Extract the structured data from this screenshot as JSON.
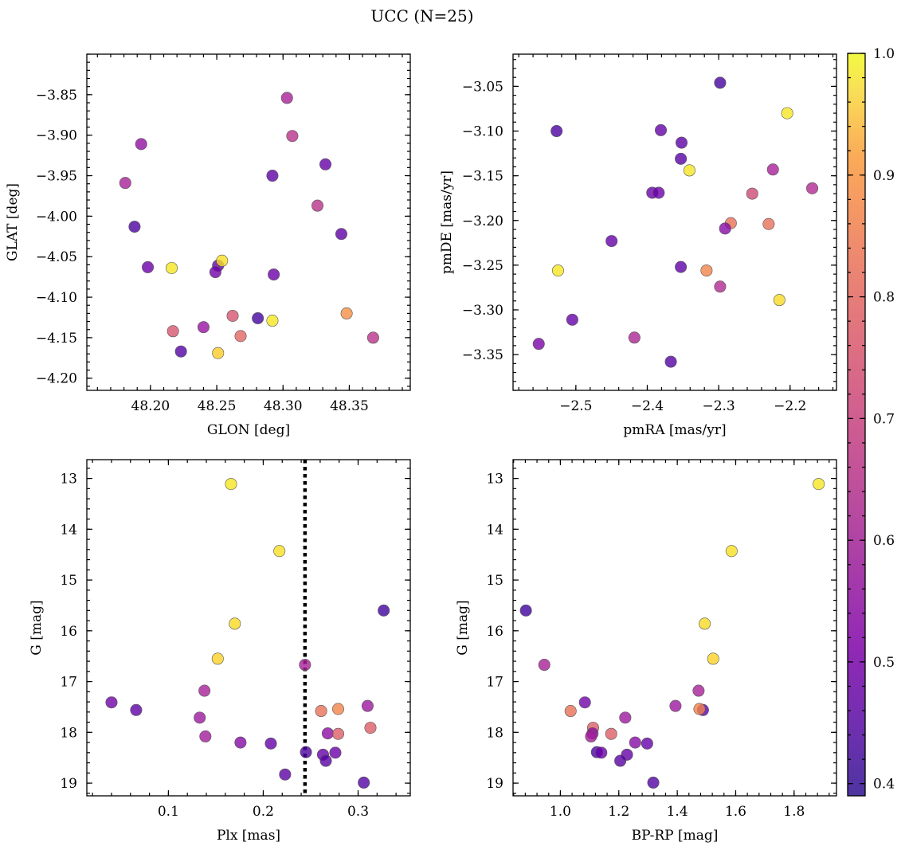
{
  "suptitle": "UCC (N=25)",
  "colorbar": {
    "range": [
      0.39,
      1.0
    ],
    "ticks": [
      0.4,
      0.5,
      0.6,
      0.7,
      0.8,
      0.9,
      1.0
    ],
    "tick_labels": [
      "0.4",
      "0.5",
      "0.6",
      "0.7",
      "0.8",
      "0.9",
      "1.0"
    ],
    "colormap": "plasma",
    "alpha": 0.8
  },
  "chart_data": [
    {
      "type": "scatter",
      "id": "glon-glat",
      "xlabel": "GLON [deg]",
      "ylabel": "GLAT [deg]",
      "xlim": [
        48.152,
        48.396
      ],
      "ylim": [
        -4.215,
        -3.8
      ],
      "invert_y": false,
      "xticks": [
        48.2,
        48.25,
        48.3,
        48.35
      ],
      "xtick_labels": [
        "48.20",
        "48.25",
        "48.30",
        "48.35"
      ],
      "xminor": 0.01,
      "yticks": [
        -4.2,
        -4.15,
        -4.1,
        -4.05,
        -4.0,
        -3.95,
        -3.9,
        -3.85
      ],
      "ytick_labels": [
        "−4.20",
        "−4.15",
        "−4.10",
        "−4.05",
        "−4.00",
        "−3.95",
        "−3.90",
        "−3.85"
      ],
      "yminor": 0.01,
      "points": [
        {
          "x": 48.303,
          "y": -3.854,
          "c": 0.58
        },
        {
          "x": 48.307,
          "y": -3.901,
          "c": 0.62
        },
        {
          "x": 48.193,
          "y": -3.911,
          "c": 0.54
        },
        {
          "x": 48.181,
          "y": -3.959,
          "c": 0.58
        },
        {
          "x": 48.292,
          "y": -3.95,
          "c": 0.45
        },
        {
          "x": 48.332,
          "y": -3.936,
          "c": 0.46
        },
        {
          "x": 48.326,
          "y": -3.987,
          "c": 0.62
        },
        {
          "x": 48.188,
          "y": -4.013,
          "c": 0.42
        },
        {
          "x": 48.344,
          "y": -4.022,
          "c": 0.45
        },
        {
          "x": 48.198,
          "y": -4.063,
          "c": 0.47
        },
        {
          "x": 48.216,
          "y": -4.064,
          "c": 0.97
        },
        {
          "x": 48.251,
          "y": -4.061,
          "c": 0.46
        },
        {
          "x": 48.254,
          "y": -4.055,
          "c": 0.96
        },
        {
          "x": 48.249,
          "y": -4.069,
          "c": 0.48
        },
        {
          "x": 48.293,
          "y": -4.072,
          "c": 0.47
        },
        {
          "x": 48.262,
          "y": -4.123,
          "c": 0.7
        },
        {
          "x": 48.281,
          "y": -4.126,
          "c": 0.41
        },
        {
          "x": 48.292,
          "y": -4.129,
          "c": 0.97
        },
        {
          "x": 48.348,
          "y": -4.12,
          "c": 0.82
        },
        {
          "x": 48.217,
          "y": -4.142,
          "c": 0.7
        },
        {
          "x": 48.24,
          "y": -4.137,
          "c": 0.55
        },
        {
          "x": 48.268,
          "y": -4.148,
          "c": 0.74
        },
        {
          "x": 48.368,
          "y": -4.15,
          "c": 0.62
        },
        {
          "x": 48.223,
          "y": -4.167,
          "c": 0.43
        },
        {
          "x": 48.251,
          "y": -4.169,
          "c": 0.93
        }
      ]
    },
    {
      "type": "scatter",
      "id": "pmra-pmde",
      "xlabel": "pmRA [mas/yr]",
      "ylabel": "pmDE [mas/yr]",
      "xlim": [
        -2.588,
        -2.135
      ],
      "ylim": [
        -3.39,
        -3.014
      ],
      "invert_y": false,
      "xticks": [
        -2.5,
        -2.4,
        -2.3,
        -2.2
      ],
      "xtick_labels": [
        "−2.5",
        "−2.4",
        "−2.3",
        "−2.2"
      ],
      "xminor": 0.02,
      "yticks": [
        -3.35,
        -3.3,
        -3.25,
        -3.2,
        -3.15,
        -3.1,
        -3.05
      ],
      "ytick_labels": [
        "−3.35",
        "−3.30",
        "−3.25",
        "−3.20",
        "−3.15",
        "−3.10",
        "−3.05"
      ],
      "yminor": 0.01,
      "points": [
        {
          "x": -2.298,
          "y": -3.046,
          "c": 0.41
        },
        {
          "x": -2.204,
          "y": -3.08,
          "c": 0.97
        },
        {
          "x": -2.527,
          "y": -3.1,
          "c": 0.42
        },
        {
          "x": -2.381,
          "y": -3.099,
          "c": 0.46
        },
        {
          "x": -2.352,
          "y": -3.113,
          "c": 0.45
        },
        {
          "x": -2.353,
          "y": -3.131,
          "c": 0.44
        },
        {
          "x": -2.341,
          "y": -3.144,
          "c": 0.97
        },
        {
          "x": -2.224,
          "y": -3.143,
          "c": 0.58
        },
        {
          "x": -2.169,
          "y": -3.164,
          "c": 0.6
        },
        {
          "x": -2.393,
          "y": -3.169,
          "c": 0.47
        },
        {
          "x": -2.384,
          "y": -3.169,
          "c": 0.47
        },
        {
          "x": -2.253,
          "y": -3.17,
          "c": 0.67
        },
        {
          "x": -2.283,
          "y": -3.203,
          "c": 0.76
        },
        {
          "x": -2.23,
          "y": -3.204,
          "c": 0.76
        },
        {
          "x": -2.291,
          "y": -3.209,
          "c": 0.52
        },
        {
          "x": -2.45,
          "y": -3.223,
          "c": 0.46
        },
        {
          "x": -2.353,
          "y": -3.252,
          "c": 0.45
        },
        {
          "x": -2.525,
          "y": -3.256,
          "c": 0.97
        },
        {
          "x": -2.317,
          "y": -3.256,
          "c": 0.8
        },
        {
          "x": -2.298,
          "y": -3.274,
          "c": 0.6
        },
        {
          "x": -2.215,
          "y": -3.289,
          "c": 0.95
        },
        {
          "x": -2.505,
          "y": -3.311,
          "c": 0.46
        },
        {
          "x": -2.418,
          "y": -3.331,
          "c": 0.59
        },
        {
          "x": -2.552,
          "y": -3.338,
          "c": 0.5
        },
        {
          "x": -2.367,
          "y": -3.358,
          "c": 0.43
        }
      ]
    },
    {
      "type": "scatter",
      "id": "plx-g",
      "xlabel": "Plx [mas]",
      "ylabel": "G [mag]",
      "xlim": [
        0.014,
        0.355
      ],
      "ylim": [
        12.63,
        19.25
      ],
      "invert_y": true,
      "xticks": [
        0.1,
        0.2,
        0.3
      ],
      "xtick_labels": [
        "0.1",
        "0.2",
        "0.3"
      ],
      "xminor": 0.02,
      "yticks": [
        13,
        14,
        15,
        16,
        17,
        18,
        19
      ],
      "ytick_labels": [
        "13",
        "14",
        "15",
        "16",
        "17",
        "18",
        "19"
      ],
      "yminor": 0.2,
      "vline": {
        "x": 0.244,
        "style": "dotted"
      },
      "points": [
        {
          "x": 0.166,
          "y": 13.11,
          "c": 0.97
        },
        {
          "x": 0.217,
          "y": 14.43,
          "c": 0.96
        },
        {
          "x": 0.327,
          "y": 15.6,
          "c": 0.4
        },
        {
          "x": 0.17,
          "y": 15.86,
          "c": 0.95
        },
        {
          "x": 0.152,
          "y": 16.55,
          "c": 0.94
        },
        {
          "x": 0.244,
          "y": 16.67,
          "c": 0.58
        },
        {
          "x": 0.138,
          "y": 17.18,
          "c": 0.58
        },
        {
          "x": 0.04,
          "y": 17.41,
          "c": 0.48
        },
        {
          "x": 0.066,
          "y": 17.56,
          "c": 0.45
        },
        {
          "x": 0.31,
          "y": 17.48,
          "c": 0.56
        },
        {
          "x": 0.261,
          "y": 17.58,
          "c": 0.76
        },
        {
          "x": 0.279,
          "y": 17.54,
          "c": 0.8
        },
        {
          "x": 0.133,
          "y": 17.71,
          "c": 0.56
        },
        {
          "x": 0.313,
          "y": 17.91,
          "c": 0.72
        },
        {
          "x": 0.268,
          "y": 18.02,
          "c": 0.53
        },
        {
          "x": 0.279,
          "y": 18.03,
          "c": 0.72
        },
        {
          "x": 0.139,
          "y": 18.08,
          "c": 0.57
        },
        {
          "x": 0.176,
          "y": 18.2,
          "c": 0.52
        },
        {
          "x": 0.208,
          "y": 18.22,
          "c": 0.46
        },
        {
          "x": 0.245,
          "y": 18.39,
          "c": 0.42
        },
        {
          "x": 0.276,
          "y": 18.4,
          "c": 0.47
        },
        {
          "x": 0.263,
          "y": 18.44,
          "c": 0.46
        },
        {
          "x": 0.266,
          "y": 18.56,
          "c": 0.44
        },
        {
          "x": 0.223,
          "y": 18.83,
          "c": 0.45
        },
        {
          "x": 0.306,
          "y": 18.99,
          "c": 0.43
        }
      ]
    },
    {
      "type": "scatter",
      "id": "bprp-g",
      "xlabel": "BP-RP [mag]",
      "ylabel": "G [mag]",
      "xlim": [
        0.838,
        1.945
      ],
      "ylim": [
        12.63,
        19.25
      ],
      "invert_y": true,
      "xticks": [
        1.0,
        1.2,
        1.4,
        1.6,
        1.8
      ],
      "xtick_labels": [
        "1.0",
        "1.2",
        "1.4",
        "1.6",
        "1.8"
      ],
      "xminor": 0.04,
      "yticks": [
        13,
        14,
        15,
        16,
        17,
        18,
        19
      ],
      "ytick_labels": [
        "13",
        "14",
        "15",
        "16",
        "17",
        "18",
        "19"
      ],
      "yminor": 0.2,
      "points": [
        {
          "x": 1.884,
          "y": 13.11,
          "c": 0.97
        },
        {
          "x": 1.586,
          "y": 14.43,
          "c": 0.96
        },
        {
          "x": 0.882,
          "y": 15.6,
          "c": 0.4
        },
        {
          "x": 1.494,
          "y": 15.86,
          "c": 0.95
        },
        {
          "x": 1.523,
          "y": 16.55,
          "c": 0.94
        },
        {
          "x": 0.945,
          "y": 16.67,
          "c": 0.58
        },
        {
          "x": 1.473,
          "y": 17.18,
          "c": 0.58
        },
        {
          "x": 1.084,
          "y": 17.41,
          "c": 0.48
        },
        {
          "x": 1.488,
          "y": 17.56,
          "c": 0.45
        },
        {
          "x": 1.394,
          "y": 17.48,
          "c": 0.56
        },
        {
          "x": 1.035,
          "y": 17.58,
          "c": 0.76
        },
        {
          "x": 1.476,
          "y": 17.54,
          "c": 0.8
        },
        {
          "x": 1.222,
          "y": 17.71,
          "c": 0.56
        },
        {
          "x": 1.112,
          "y": 17.91,
          "c": 0.72
        },
        {
          "x": 1.11,
          "y": 18.02,
          "c": 0.53
        },
        {
          "x": 1.174,
          "y": 18.03,
          "c": 0.72
        },
        {
          "x": 1.105,
          "y": 18.08,
          "c": 0.57
        },
        {
          "x": 1.256,
          "y": 18.2,
          "c": 0.52
        },
        {
          "x": 1.297,
          "y": 18.22,
          "c": 0.46
        },
        {
          "x": 1.125,
          "y": 18.39,
          "c": 0.42
        },
        {
          "x": 1.14,
          "y": 18.4,
          "c": 0.47
        },
        {
          "x": 1.228,
          "y": 18.44,
          "c": 0.46
        },
        {
          "x": 1.205,
          "y": 18.56,
          "c": 0.44
        },
        {
          "x": 1.318,
          "y": 18.99,
          "c": 0.43
        }
      ]
    }
  ]
}
